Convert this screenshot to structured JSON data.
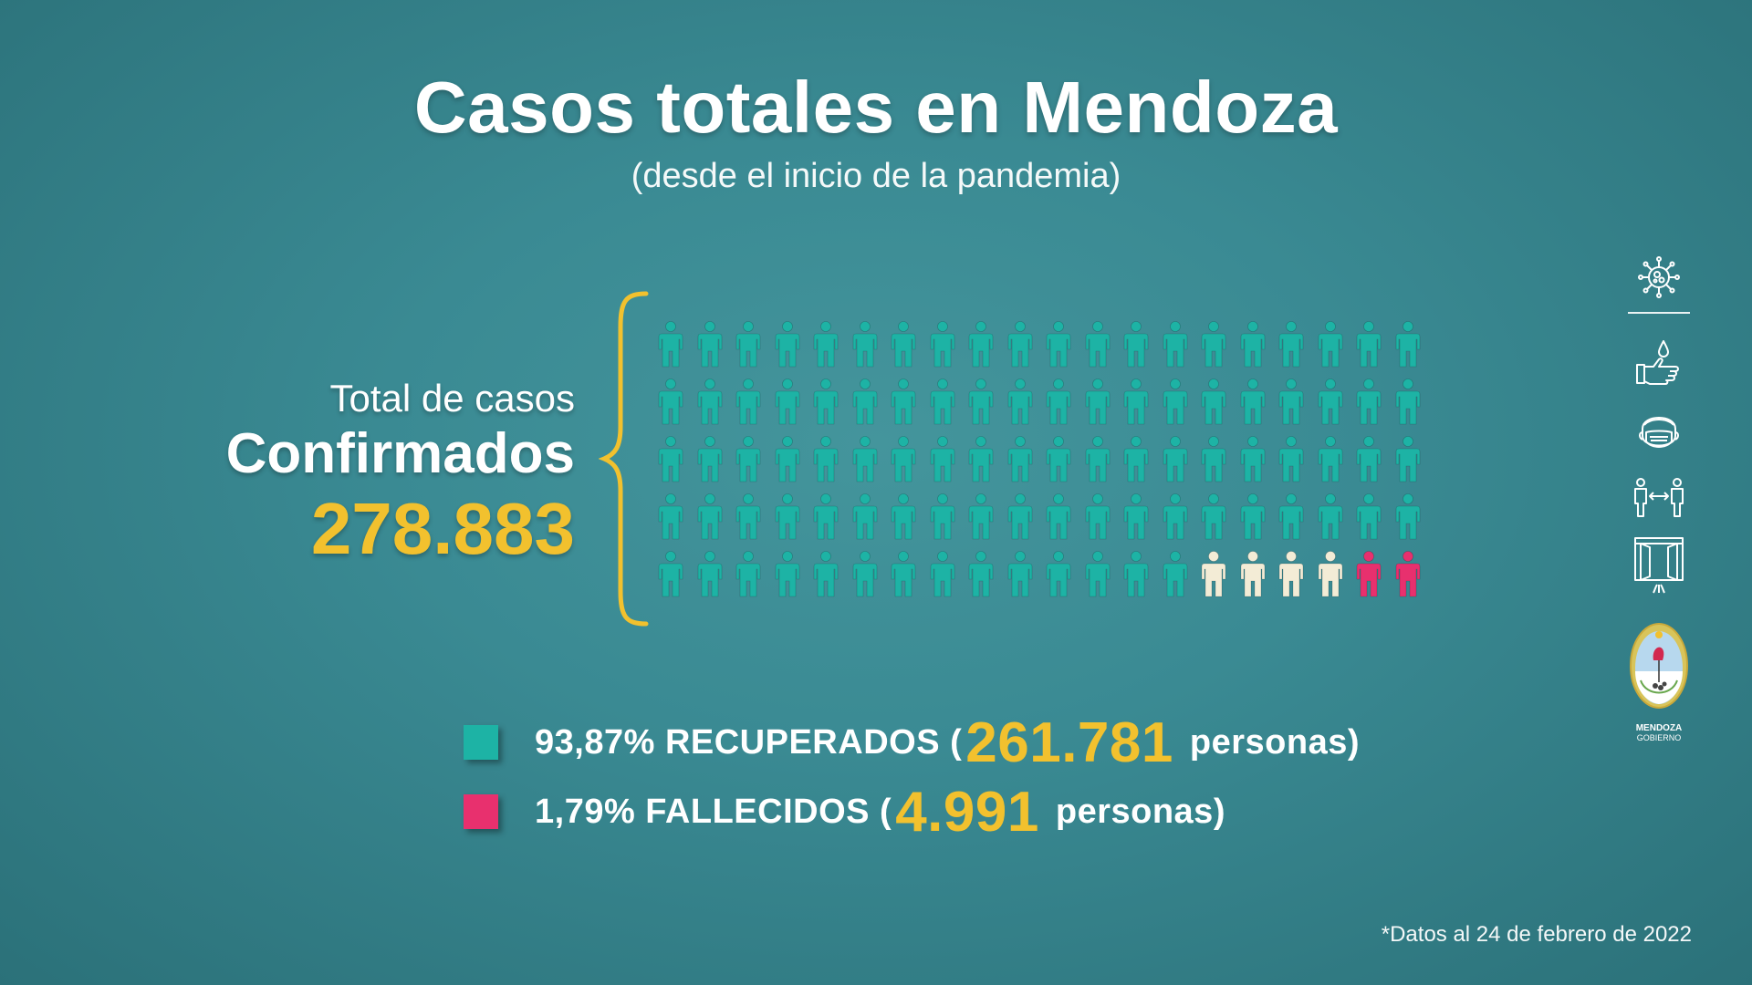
{
  "header": {
    "title": "Casos totales en Mendoza",
    "subtitle": "(desde el inicio de la pandemia)"
  },
  "summary": {
    "label": "Total de casos",
    "heading": "Confirmados",
    "total": "278.883"
  },
  "pictogram": {
    "rows": 5,
    "cols": 20,
    "colors": {
      "recovered": "#1db3a5",
      "active": "#f3ecd6",
      "deceased": "#e8306e"
    },
    "last_row": [
      "recovered",
      "recovered",
      "recovered",
      "recovered",
      "recovered",
      "recovered",
      "recovered",
      "recovered",
      "recovered",
      "recovered",
      "recovered",
      "recovered",
      "recovered",
      "recovered",
      "active",
      "active",
      "active",
      "active",
      "deceased",
      "deceased"
    ]
  },
  "legend": {
    "recovered": {
      "color": "#1db3a5",
      "prefix": "93,87% RECUPERADOS (",
      "number": "261.781",
      "suffix": "personas)"
    },
    "deceased": {
      "color": "#e8306e",
      "prefix": "1,79% FALLECIDOS (",
      "number": "4.991",
      "suffix": "personas)"
    }
  },
  "footnote": "*Datos al 24 de febrero de 2022",
  "side_icons": [
    "virus-icon",
    "handwash-icon",
    "mask-icon",
    "distance-icon",
    "ventilation-icon"
  ],
  "logo": {
    "line1": "MENDOZA",
    "line2": "GOBIERNO"
  },
  "accent_color": "#f2c12e"
}
